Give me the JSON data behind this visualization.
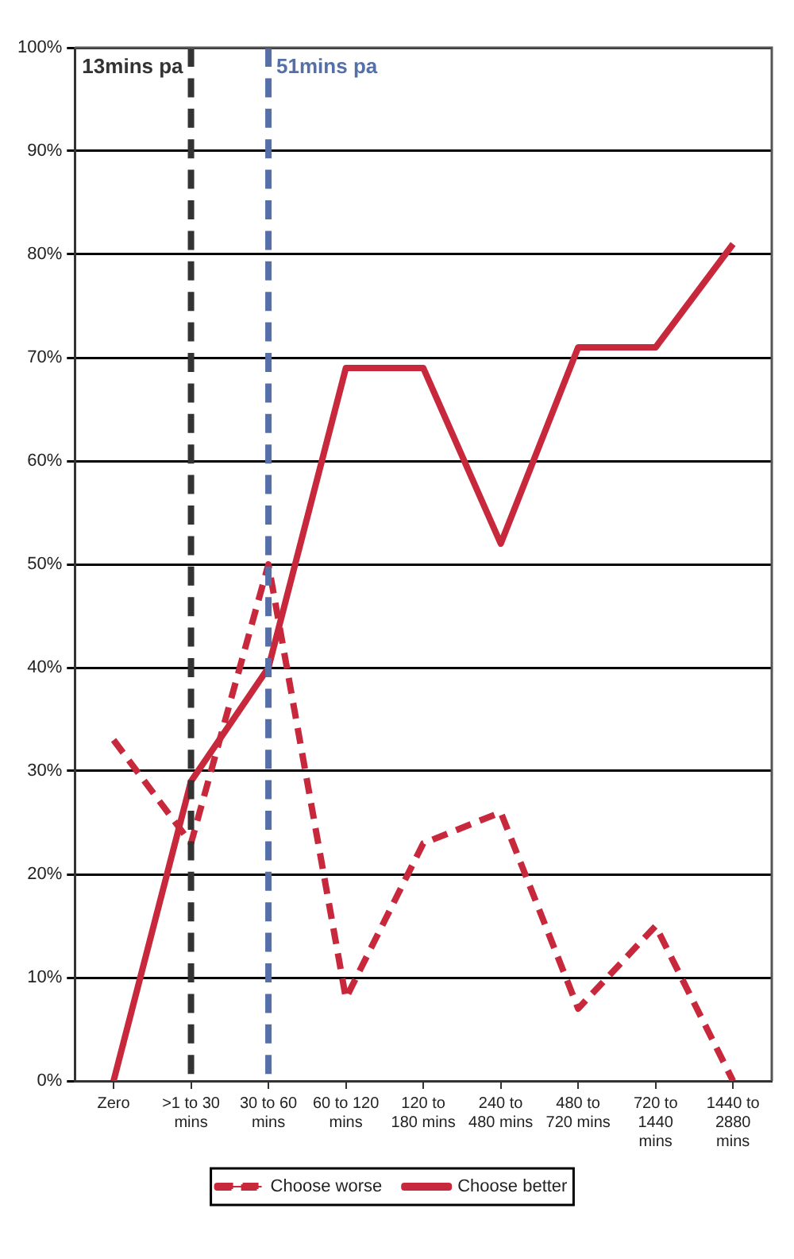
{
  "chart_data": {
    "type": "line",
    "categories": [
      "Zero",
      ">1 to 30 mins",
      "30 to 60 mins",
      "60 to 120 mins",
      "120 to 180 mins",
      "240 to 480 mins",
      "480 to 720 mins",
      "720 to 1440 mins",
      "1440 to 2880 mins"
    ],
    "series": [
      {
        "name": "Choose worse",
        "color": "#c8283c",
        "line_style": "dashed",
        "values": [
          33,
          23,
          50,
          8,
          23,
          26,
          7,
          15,
          0
        ]
      },
      {
        "name": "Choose better",
        "color": "#c8283c",
        "line_style": "solid",
        "values": [
          0,
          29,
          40,
          69,
          69,
          52,
          71,
          71,
          81
        ]
      }
    ],
    "ylim": [
      0,
      100
    ],
    "yticks": [
      {
        "value": 0,
        "label": "0%"
      },
      {
        "value": 10,
        "label": "10%"
      },
      {
        "value": 20,
        "label": "20%"
      },
      {
        "value": 30,
        "label": "30%"
      },
      {
        "value": 40,
        "label": "40%"
      },
      {
        "value": 50,
        "label": "50%"
      },
      {
        "value": 60,
        "label": "60%"
      },
      {
        "value": 70,
        "label": "70%"
      },
      {
        "value": 80,
        "label": "80%"
      },
      {
        "value": 90,
        "label": "90%"
      },
      {
        "value": 100,
        "label": "100%"
      }
    ],
    "ref_lines": [
      {
        "axis": "x",
        "value": ">1 to 30 mins",
        "label": "13mins pa",
        "color": "#333333",
        "line_style": "dashed"
      },
      {
        "axis": "x",
        "value": "30 to 60 mins",
        "label": "51mins pa",
        "color": "#5570a8",
        "line_style": "dashed"
      }
    ],
    "grid": "y",
    "legend": "bottom",
    "marker": "none"
  }
}
